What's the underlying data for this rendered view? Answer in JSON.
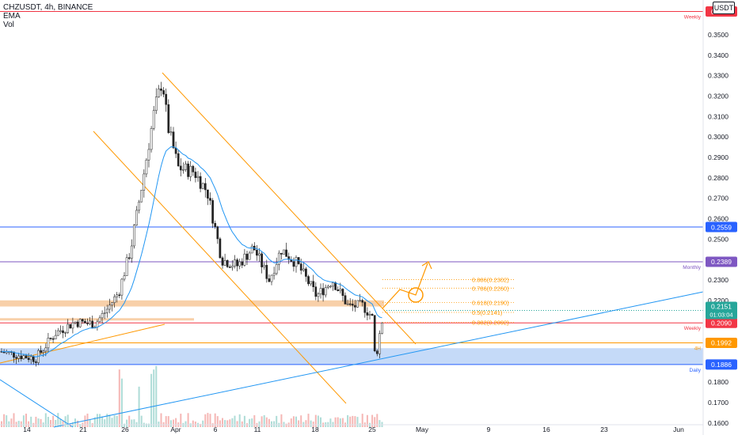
{
  "legend": {
    "symbol": "CHZUSDT, 4h, BINANCE",
    "ema": "EMA",
    "vol": "Vol"
  },
  "currency_button": "USDT",
  "chart_data": {
    "type": "candlestick",
    "symbol": "CHZUSDT",
    "interval": "4h",
    "exchange": "BINANCE",
    "ylim": [
      0.1615,
      0.3635
    ],
    "y_ticks": [
      "0.3600",
      "0.3500",
      "0.3400",
      "0.3300",
      "0.3200",
      "0.3100",
      "0.3000",
      "0.2900",
      "0.2800",
      "0.2700",
      "0.2600",
      "0.2500",
      "0.2400",
      "0.2300",
      "0.2200",
      "0.2100",
      "0.2000",
      "0.1900",
      "0.1800",
      "0.1700",
      "0.1600"
    ],
    "x_ticks": [
      "14",
      "21",
      "26",
      "Apr",
      "6",
      "11",
      "18",
      "25",
      "May",
      "9",
      "16",
      "23",
      "Jun"
    ],
    "price_label": {
      "value": "0.2151",
      "countdown": "01:03:04"
    },
    "levels": [
      {
        "price": 0.3614,
        "label": "0.3614",
        "tag": "Weekly",
        "color": "#f23645"
      },
      {
        "price": 0.2559,
        "label": "0.2559",
        "tag": "",
        "color": "#2962ff"
      },
      {
        "price": 0.2389,
        "label": "0.2389",
        "tag": "Monthly",
        "color": "#7e57c2"
      },
      {
        "price": 0.209,
        "label": "0.2090",
        "tag": "Weekly",
        "color": "#f23645"
      },
      {
        "price": 0.1992,
        "label": "0.1992",
        "tag": "4H",
        "color": "#ff9800"
      },
      {
        "price": 0.1886,
        "label": "0.1886",
        "tag": "Daily",
        "color": "#2962ff"
      }
    ],
    "fib": [
      {
        "level": "0.886",
        "price": 0.2302,
        "label": "0.886(0.2302)"
      },
      {
        "level": "0.786",
        "price": 0.226,
        "label": "0.786(0.2260)"
      },
      {
        "level": "0.618",
        "price": 0.219,
        "label": "0.618(0.2190)"
      },
      {
        "level": "0.5",
        "price": 0.2141,
        "label": "0.5(0.2141)"
      },
      {
        "level": "0.382",
        "price": 0.2092,
        "label": "0.382(0.2092)"
      }
    ],
    "zones": [
      {
        "from": 0.217,
        "to": 0.22,
        "color": "#f7c89a"
      },
      {
        "from": 0.2103,
        "to": 0.2113,
        "color": "#f7c89a"
      },
      {
        "from": 0.1886,
        "to": 0.1966,
        "color": "#bbd3f7"
      }
    ],
    "colors": {
      "up": "#26a69a",
      "down": "#ef5350",
      "ema": "#2196f3",
      "channel": "#ff9800",
      "trend": "#2196f3"
    }
  }
}
